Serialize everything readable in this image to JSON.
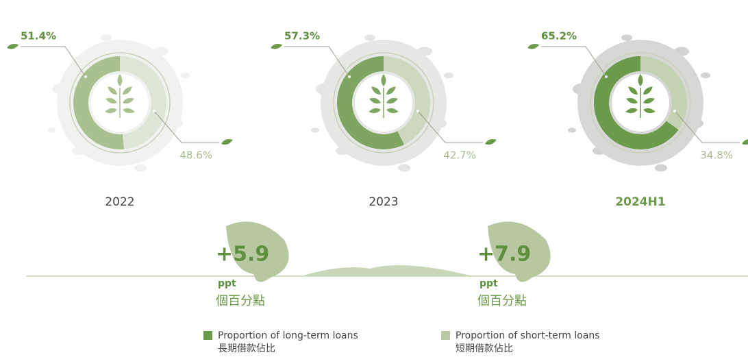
{
  "chart_data": {
    "type": "donut",
    "categories": [
      "2022",
      "2023",
      "2024H1"
    ],
    "series": [
      {
        "name": "Proportion of long-term loans",
        "name_zh": "長期借款佔比",
        "color": "#6b9a4a",
        "point_colors": [
          "#a9c18f",
          "#7fa562",
          "#6b9a4a"
        ],
        "values": [
          51.4,
          57.3,
          65.2
        ],
        "value_labels": [
          "51.4%",
          "57.3%",
          "65.2%"
        ]
      },
      {
        "name": "Proportion of short-term loans",
        "name_zh": "短期借款佔比",
        "color": "#b8c9a3",
        "point_colors": [
          "#dfe5d6",
          "#cdd8bf",
          "#c3d2b0"
        ],
        "values": [
          48.6,
          42.7,
          34.8
        ],
        "value_labels": [
          "48.6%",
          "42.7%",
          "34.8%"
        ]
      }
    ],
    "changes": {
      "values": [
        5.9,
        7.9
      ],
      "value_labels": [
        "+5.9",
        "+7.9"
      ],
      "unit": "ppt",
      "unit_zh": "個百分點"
    }
  }
}
